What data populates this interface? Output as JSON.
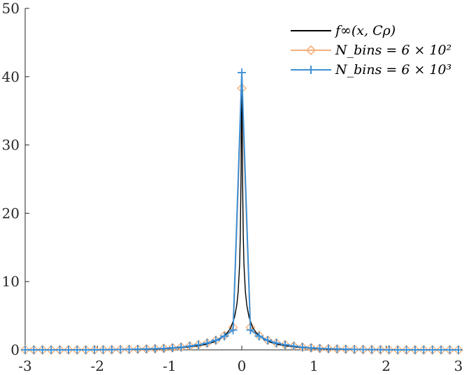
{
  "chart_data": {
    "type": "line",
    "title": "",
    "xlabel": "",
    "ylabel": "",
    "xlim": [
      -3,
      3
    ],
    "ylim": [
      0,
      50
    ],
    "x_ticks": [
      -3,
      -2,
      -1,
      0,
      1,
      2,
      3
    ],
    "x_tick_labels": [
      "-3",
      "-2",
      "-1",
      "0",
      "1",
      "2",
      "3"
    ],
    "y_ticks": [
      0,
      10,
      20,
      30,
      40,
      50
    ],
    "y_tick_labels": [
      "0",
      "10",
      "20",
      "30",
      "40",
      "50"
    ],
    "grid": false,
    "legend_position": "top-right",
    "series": [
      {
        "name": "f∞(x, Cρ)",
        "color": "#000000",
        "marker": "none",
        "x": [
          -3,
          -2.5,
          -2,
          -1.5,
          -1.2,
          -1,
          -0.8,
          -0.6,
          -0.5,
          -0.4,
          -0.3,
          -0.2,
          -0.15,
          -0.1,
          -0.07,
          -0.05,
          -0.03,
          -0.02,
          -0.01,
          0,
          0.01,
          0.02,
          0.03,
          0.05,
          0.07,
          0.1,
          0.15,
          0.2,
          0.3,
          0.4,
          0.5,
          0.6,
          0.8,
          1,
          1.2,
          1.5,
          2,
          2.5,
          3
        ],
        "y": [
          0.0,
          0.0,
          0.01,
          0.05,
          0.12,
          0.2,
          0.35,
          0.6,
          0.8,
          1.1,
          1.6,
          2.5,
          3.3,
          4.8,
          6.5,
          8.5,
          12.5,
          17,
          26,
          40.3,
          26,
          17,
          12.5,
          8.5,
          6.5,
          4.8,
          3.3,
          2.5,
          1.6,
          1.1,
          0.8,
          0.6,
          0.35,
          0.2,
          0.12,
          0.05,
          0.01,
          0.0,
          0.0
        ]
      },
      {
        "name": "N_bins = 6 × 10²",
        "color": "#f6b07c",
        "marker": "diamond",
        "x": [
          -3,
          -2.88,
          -2.76,
          -2.64,
          -2.52,
          -2.4,
          -2.28,
          -2.16,
          -2.04,
          -1.92,
          -1.8,
          -1.68,
          -1.56,
          -1.44,
          -1.32,
          -1.2,
          -1.08,
          -0.96,
          -0.84,
          -0.72,
          -0.6,
          -0.48,
          -0.36,
          -0.24,
          -0.12,
          0,
          0.12,
          0.24,
          0.36,
          0.48,
          0.6,
          0.72,
          0.84,
          0.96,
          1.08,
          1.2,
          1.32,
          1.44,
          1.56,
          1.68,
          1.8,
          1.92,
          2.04,
          2.16,
          2.28,
          2.4,
          2.52,
          2.64,
          2.76,
          2.88,
          3
        ],
        "y": [
          0.0,
          0.0,
          0.0,
          0.0,
          0.0,
          0.0,
          0.0,
          0.0,
          0.01,
          0.02,
          0.03,
          0.05,
          0.07,
          0.1,
          0.13,
          0.17,
          0.22,
          0.3,
          0.4,
          0.55,
          0.75,
          1.0,
          1.4,
          2.1,
          3.3,
          38.3,
          3.3,
          2.1,
          1.4,
          1.0,
          0.75,
          0.55,
          0.4,
          0.3,
          0.22,
          0.17,
          0.13,
          0.1,
          0.07,
          0.05,
          0.03,
          0.02,
          0.01,
          0.0,
          0.0,
          0.0,
          0.0,
          0.0,
          0.0,
          0.0,
          0.0
        ]
      },
      {
        "name": "N_bins = 6 × 10³",
        "color": "#3c8fd6",
        "marker": "plus",
        "x": [
          -3,
          -2.88,
          -2.76,
          -2.64,
          -2.52,
          -2.4,
          -2.28,
          -2.16,
          -2.04,
          -1.92,
          -1.8,
          -1.68,
          -1.56,
          -1.44,
          -1.32,
          -1.2,
          -1.08,
          -0.96,
          -0.84,
          -0.72,
          -0.6,
          -0.48,
          -0.36,
          -0.24,
          -0.12,
          0,
          0.12,
          0.24,
          0.36,
          0.48,
          0.6,
          0.72,
          0.84,
          0.96,
          1.08,
          1.2,
          1.32,
          1.44,
          1.56,
          1.68,
          1.8,
          1.92,
          2.04,
          2.16,
          2.28,
          2.4,
          2.52,
          2.64,
          2.76,
          2.88,
          3
        ],
        "y": [
          0.0,
          0.0,
          0.0,
          0.0,
          0.0,
          0.0,
          0.0,
          0.0,
          0.01,
          0.02,
          0.03,
          0.05,
          0.07,
          0.1,
          0.13,
          0.17,
          0.22,
          0.3,
          0.4,
          0.55,
          0.75,
          1.0,
          1.4,
          2.0,
          2.9,
          40.6,
          2.9,
          2.0,
          1.4,
          1.0,
          0.75,
          0.55,
          0.4,
          0.3,
          0.22,
          0.17,
          0.13,
          0.1,
          0.07,
          0.05,
          0.03,
          0.02,
          0.01,
          0.0,
          0.0,
          0.0,
          0.0,
          0.0,
          0.0,
          0.0,
          0.0
        ]
      }
    ]
  }
}
